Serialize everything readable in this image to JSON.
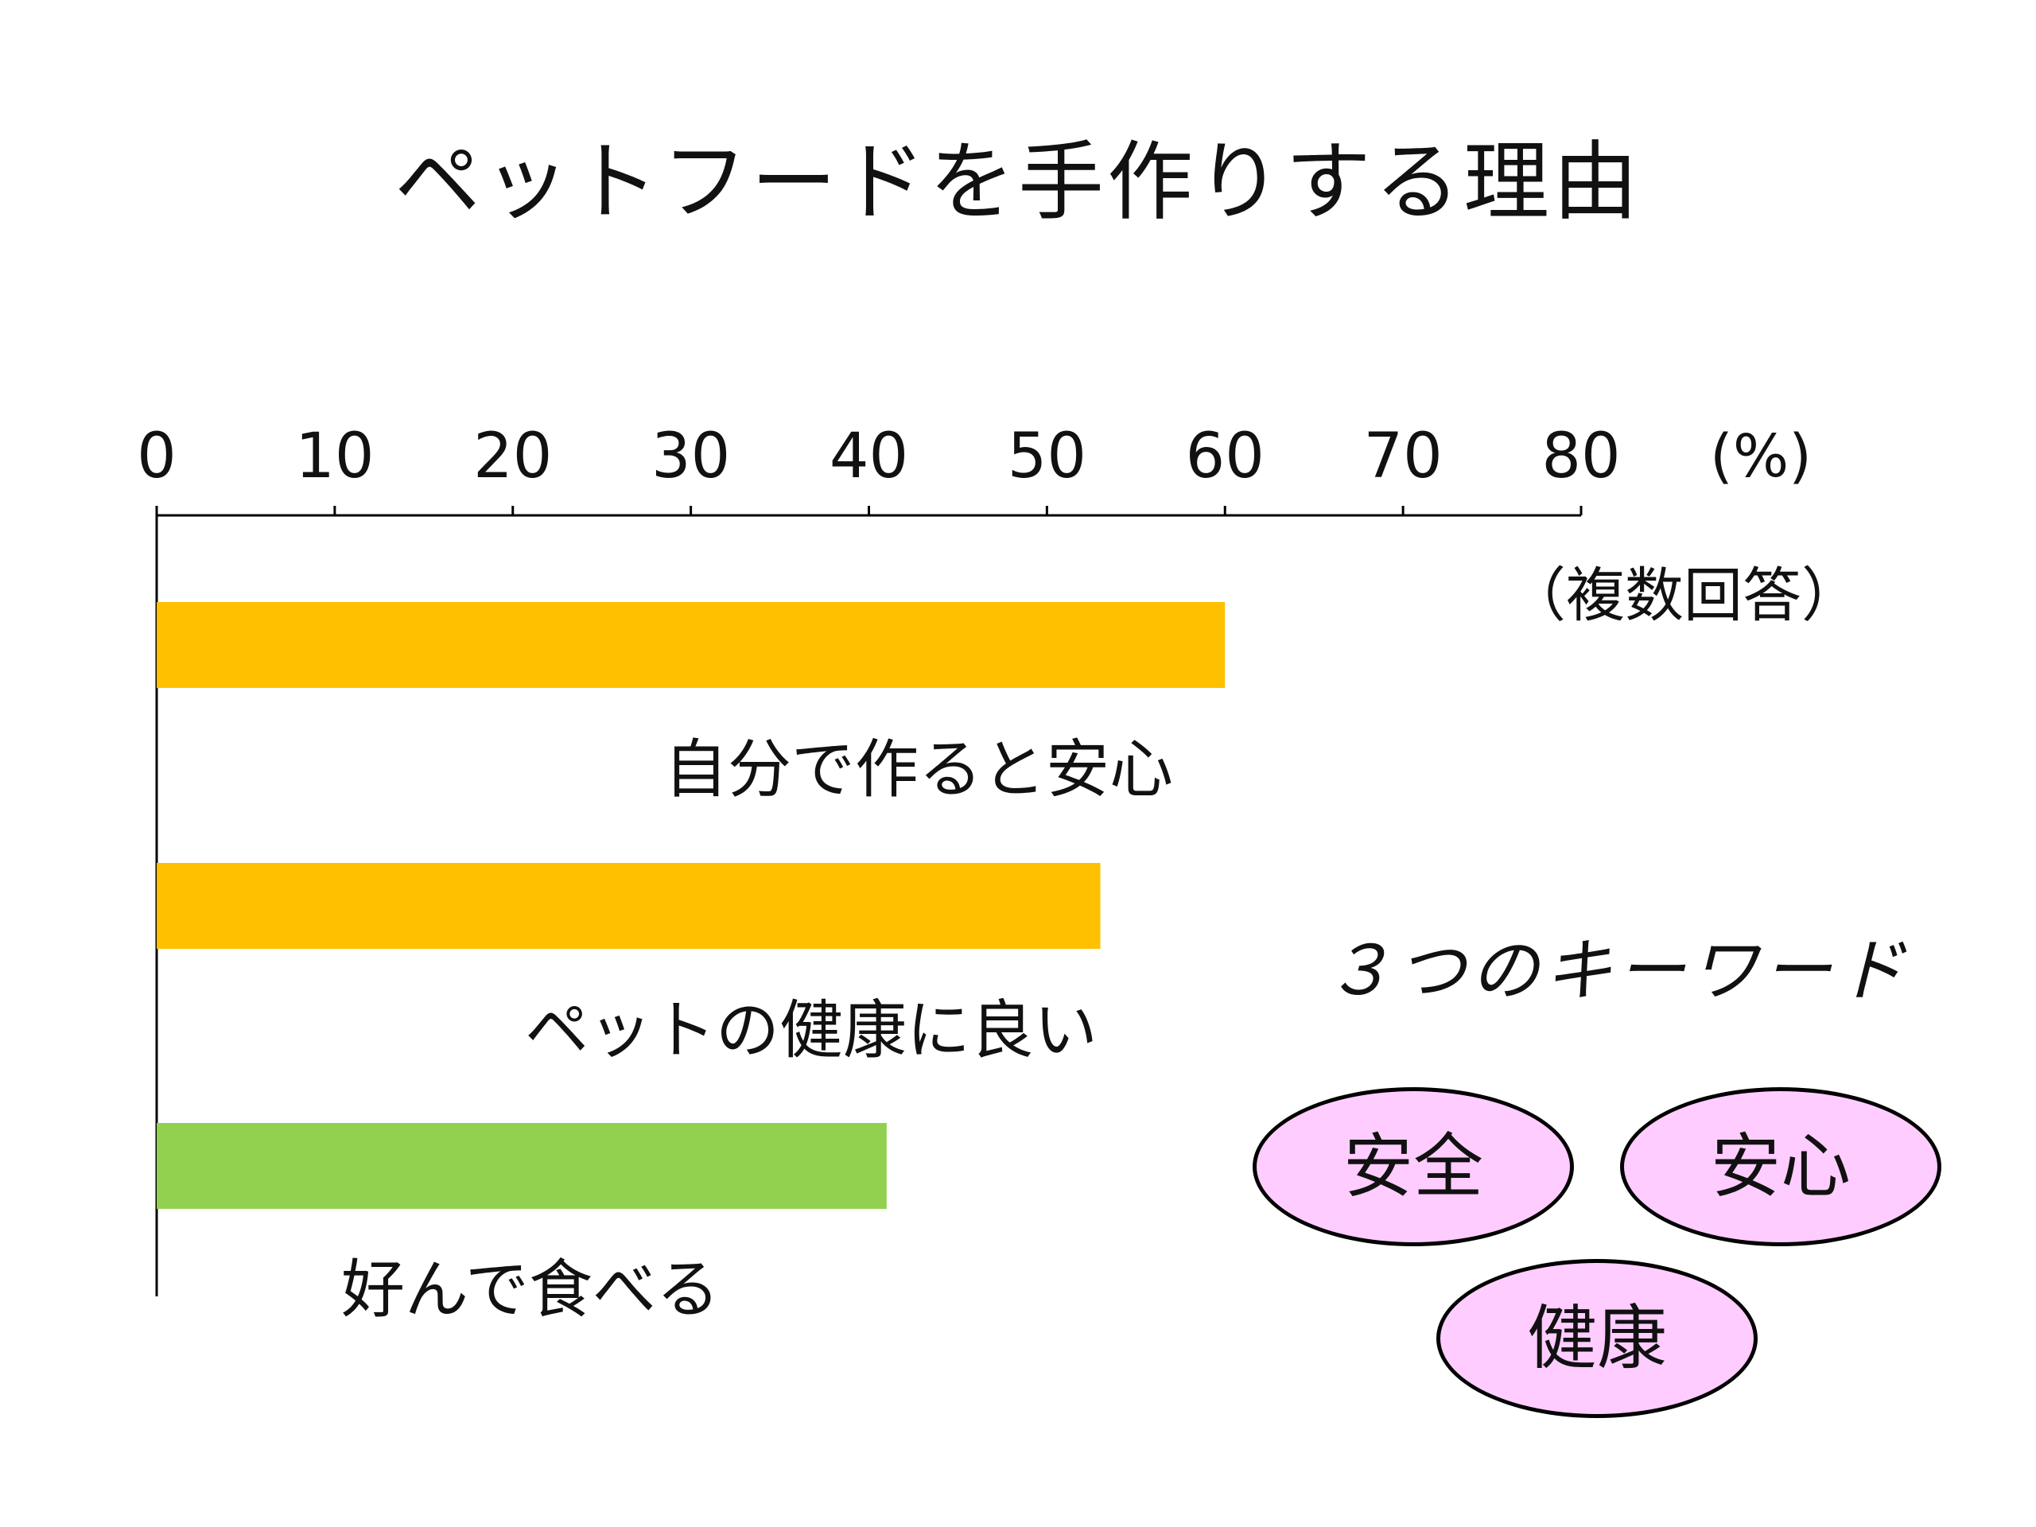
{
  "chart_data": {
    "type": "bar",
    "orientation": "horizontal",
    "title": "ペットフードを手作りする理由",
    "unit": "(%)",
    "note": "（複数回答）",
    "xlim": [
      0,
      80
    ],
    "xticks": [
      0,
      10,
      20,
      30,
      40,
      50,
      60,
      70,
      80
    ],
    "categories": [
      "自分で作ると安心",
      "ペットの健康に良い",
      "好んで食べる"
    ],
    "values": [
      60,
      53,
      41
    ],
    "bar_colors": [
      "#FFC000",
      "#FFC000",
      "#92D050"
    ],
    "grid": false,
    "legend": "none"
  },
  "keywords": {
    "title": "３つのキーワード",
    "items": [
      "安全",
      "安心",
      "健康"
    ],
    "fill": "#FFCCFF",
    "stroke": "#000000"
  }
}
